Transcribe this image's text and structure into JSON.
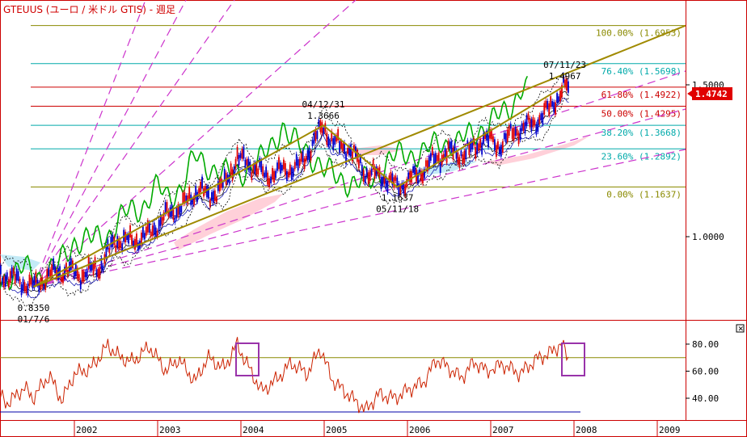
{
  "title": "GTEUUS (ユーロ / 米ドル GTIS) - 週足",
  "current_price": "1.4742",
  "colors": {
    "frame": "#cc0000",
    "price_up": "#e00000",
    "price_down": "#0000cc",
    "lagging_span": "#00aa00",
    "trend": "#a08a00",
    "fan": "#cc33cc",
    "cloud": "#ffc8d2",
    "cloud_blue": "#bde8f5",
    "rsi": "#cc2200",
    "rsi_box": "#9933aa"
  },
  "chart_data": [
    {
      "type": "line",
      "x_labels": [
        "2002",
        "2003",
        "2004",
        "2005",
        "2006",
        "2007",
        "2008",
        "2009"
      ],
      "y_ticks": [
        "1.5000",
        "1.0000"
      ],
      "ylim": [
        0.8,
        1.73
      ],
      "fib_levels": [
        {
          "label": "100.00% (1.6953)",
          "value": 1.6953
        },
        {
          "label": "76.40% (1.5698)",
          "value": 1.5698
        },
        {
          "label": "61.80% (1.4922)",
          "value": 1.4922
        },
        {
          "label": "50.00% (1.4295)",
          "value": 1.4295
        },
        {
          "label": "38.20% (1.3668)",
          "value": 1.3668
        },
        {
          "label": "23.60% (1.2892)",
          "value": 1.2892
        },
        {
          "label": "0.00% (1.1637)",
          "value": 1.1637
        }
      ],
      "annotations": [
        {
          "date": "01/7/6",
          "value": "0.8350",
          "year": 2001.51,
          "price": 0.835
        },
        {
          "date": "04/12/31",
          "value": "1.3666",
          "year": 2004.99,
          "price": 1.3666
        },
        {
          "date": "05/11/18",
          "value": "1.1637",
          "year": 2005.88,
          "price": 1.1637
        },
        {
          "date": "07/11/23",
          "value": "1.4967",
          "year": 2007.89,
          "price": 1.4967
        }
      ],
      "price_path": [
        [
          2001.0,
          0.88
        ],
        [
          2001.2,
          0.87
        ],
        [
          2001.51,
          0.835
        ],
        [
          2001.7,
          0.875
        ],
        [
          2001.9,
          0.89
        ],
        [
          2002.1,
          0.875
        ],
        [
          2002.3,
          0.9
        ],
        [
          2002.5,
          0.99
        ],
        [
          2002.7,
          0.985
        ],
        [
          2002.9,
          1.01
        ],
        [
          2003.1,
          1.07
        ],
        [
          2003.3,
          1.1
        ],
        [
          2003.5,
          1.16
        ],
        [
          2003.6,
          1.13
        ],
        [
          2003.8,
          1.17
        ],
        [
          2003.95,
          1.26
        ],
        [
          2004.1,
          1.24
        ],
        [
          2004.3,
          1.2
        ],
        [
          2004.5,
          1.22
        ],
        [
          2004.7,
          1.23
        ],
        [
          2004.85,
          1.3
        ],
        [
          2004.99,
          1.3666
        ],
        [
          2005.1,
          1.31
        ],
        [
          2005.3,
          1.29
        ],
        [
          2005.5,
          1.21
        ],
        [
          2005.7,
          1.2
        ],
        [
          2005.88,
          1.1637
        ],
        [
          2006.1,
          1.2
        ],
        [
          2006.3,
          1.25
        ],
        [
          2006.5,
          1.28
        ],
        [
          2006.7,
          1.27
        ],
        [
          2006.9,
          1.32
        ],
        [
          2007.1,
          1.3
        ],
        [
          2007.3,
          1.35
        ],
        [
          2007.5,
          1.37
        ],
        [
          2007.7,
          1.42
        ],
        [
          2007.89,
          1.4967
        ],
        [
          2007.95,
          1.4742
        ]
      ]
    },
    {
      "type": "line",
      "series_kind": "oscillator",
      "y_ticks": [
        "80.00",
        "60.00",
        "40.00"
      ],
      "ylim": [
        28,
        88
      ],
      "values": [
        [
          2001.0,
          50
        ],
        [
          2001.2,
          36
        ],
        [
          2001.4,
          48
        ],
        [
          2001.5,
          40
        ],
        [
          2001.7,
          57
        ],
        [
          2001.85,
          38
        ],
        [
          2002.0,
          58
        ],
        [
          2002.2,
          62
        ],
        [
          2002.4,
          79
        ],
        [
          2002.55,
          70
        ],
        [
          2002.7,
          67
        ],
        [
          2002.9,
          78
        ],
        [
          2003.1,
          60
        ],
        [
          2003.25,
          69
        ],
        [
          2003.45,
          52
        ],
        [
          2003.6,
          70
        ],
        [
          2003.8,
          62
        ],
        [
          2003.95,
          80
        ],
        [
          2004.1,
          62
        ],
        [
          2004.25,
          45
        ],
        [
          2004.45,
          55
        ],
        [
          2004.6,
          66
        ],
        [
          2004.8,
          58
        ],
        [
          2004.95,
          77
        ],
        [
          2005.1,
          53
        ],
        [
          2005.3,
          42
        ],
        [
          2005.5,
          31
        ],
        [
          2005.65,
          43
        ],
        [
          2005.85,
          40
        ],
        [
          2006.0,
          46
        ],
        [
          2006.2,
          52
        ],
        [
          2006.35,
          69
        ],
        [
          2006.5,
          62
        ],
        [
          2006.65,
          55
        ],
        [
          2006.8,
          67
        ],
        [
          2006.95,
          60
        ],
        [
          2007.15,
          65
        ],
        [
          2007.35,
          58
        ],
        [
          2007.55,
          69
        ],
        [
          2007.7,
          73
        ],
        [
          2007.85,
          80
        ],
        [
          2007.95,
          67
        ]
      ]
    }
  ]
}
